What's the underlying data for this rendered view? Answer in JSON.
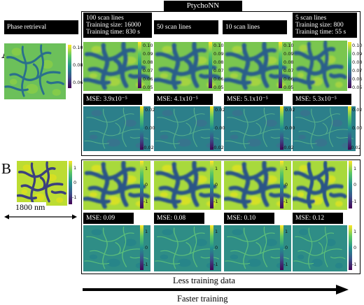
{
  "header": {
    "title": "PtychoNN"
  },
  "columns": [
    {
      "label": "Phase retrieval"
    },
    {
      "label": "100 scan lines",
      "sub1": "Training size: 16000",
      "sub2": "Training time: 830 s"
    },
    {
      "label": "50 scan lines"
    },
    {
      "label": "10 scan lines"
    },
    {
      "label": "5 scan lines",
      "sub1": "Training size: 800",
      "sub2": "Training time: 55 s"
    }
  ],
  "rows": [
    {
      "label": "A",
      "mse": [
        "MSE: 3.9x10⁻⁵",
        "MSE: 4.1x10⁻⁵",
        "MSE: 5.1x10⁻⁵",
        "MSE: 5.3x10⁻⁵"
      ],
      "phase_ticks": [
        "0.10",
        "0.08",
        "0.06"
      ],
      "recon_ticks": [
        "0.10",
        "0.09",
        "0.08",
        "0.07",
        "0.06",
        "0.05"
      ],
      "error_ticks": [
        "0.02",
        "0.00",
        "-0.02"
      ]
    },
    {
      "label": "B",
      "mse": [
        "MSE: 0.09",
        "MSE: 0.08",
        "MSE: 0.10",
        "MSE: 0.12"
      ],
      "phase_ticks": [
        "1",
        "0",
        "-1"
      ],
      "recon_ticks": [
        "1",
        "0",
        "-1"
      ],
      "error_ticks": [
        "1",
        "0",
        "-1"
      ]
    }
  ],
  "scale_bar": "1800 nm",
  "arrow": {
    "label1": "Less training data",
    "label2": "Faster training"
  },
  "colors": {
    "block_bg": "#000000",
    "block_text": "#ffffff",
    "colormap": [
      "#440154",
      "#3b528b",
      "#21918c",
      "#5ec962",
      "#fde725"
    ]
  }
}
